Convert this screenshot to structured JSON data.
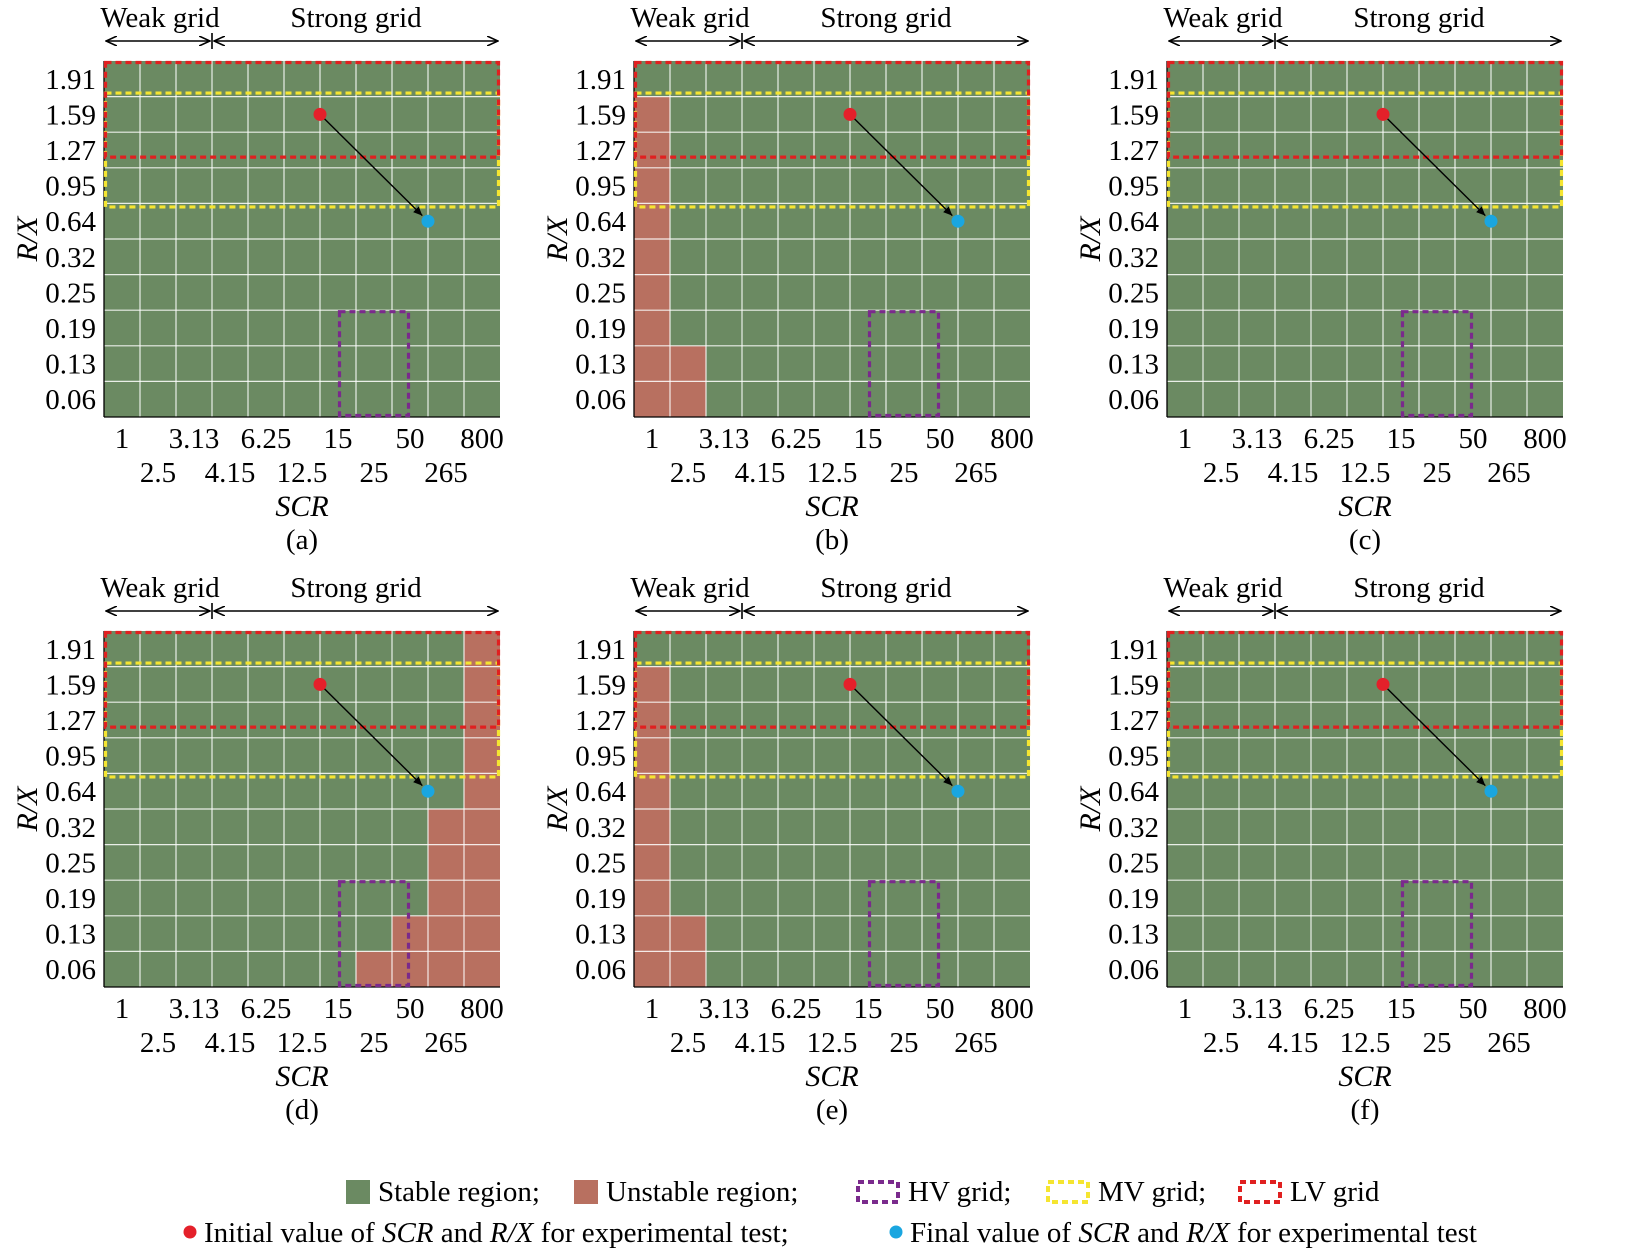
{
  "colors": {
    "stable": "#6b8a62",
    "unstable": "#b87060",
    "grid_line": "#ffffff",
    "hv": "#7a2a8c",
    "mv": "#f5e531",
    "lv": "#e02020",
    "initial_point": "#e4202a",
    "final_point": "#1aa6e0",
    "arrow": "#000000"
  },
  "chart_data": [
    {
      "type": "heatmap",
      "panel_label": "(a)",
      "region_labels": {
        "weak": "Weak grid",
        "strong": "Strong grid"
      },
      "x_ticks_top": [
        "1",
        "3.13",
        "6.25",
        "15",
        "50",
        "800"
      ],
      "x_ticks_bottom": [
        "2.5",
        "4.15",
        "12.5",
        "25",
        "265"
      ],
      "xlabel": "SCR",
      "ylabel": "R/X",
      "y_ticks": [
        "1.91",
        "1.59",
        "1.27",
        "0.95",
        "0.64",
        "0.32",
        "0.25",
        "0.19",
        "0.13",
        "0.06"
      ],
      "unstable_cells": [],
      "hv_grid": {
        "scr": [
          "15",
          "50"
        ],
        "rx": [
          "0.06",
          "0.19"
        ]
      },
      "mv_grid": {
        "scr": [
          "1",
          "800"
        ],
        "rx": [
          "0.95",
          "1.59"
        ]
      },
      "lv_grid": {
        "scr": [
          "1",
          "800"
        ],
        "rx": [
          "1.59",
          "1.91"
        ]
      },
      "initial_point": {
        "scr": 15,
        "rx": 1.59
      },
      "final_point": {
        "scr": 50,
        "rx": 0.64
      }
    },
    {
      "type": "heatmap",
      "panel_label": "(b)",
      "region_labels": {
        "weak": "Weak grid",
        "strong": "Strong grid"
      },
      "x_ticks_top": [
        "1",
        "3.13",
        "6.25",
        "15",
        "50",
        "800"
      ],
      "x_ticks_bottom": [
        "2.5",
        "4.15",
        "12.5",
        "25",
        "265"
      ],
      "xlabel": "SCR",
      "ylabel": "R/X",
      "y_ticks": [
        "1.91",
        "1.59",
        "1.27",
        "0.95",
        "0.64",
        "0.32",
        "0.25",
        "0.19",
        "0.13",
        "0.06"
      ],
      "unstable_cells": [
        {
          "scr": "1",
          "rx": "1.59"
        },
        {
          "scr": "1",
          "rx": "1.27"
        },
        {
          "scr": "1",
          "rx": "0.95"
        },
        {
          "scr": "1",
          "rx": "0.64"
        },
        {
          "scr": "1",
          "rx": "0.32"
        },
        {
          "scr": "1",
          "rx": "0.25"
        },
        {
          "scr": "1",
          "rx": "0.19"
        },
        {
          "scr": "1",
          "rx": "0.13"
        },
        {
          "scr": "1",
          "rx": "0.06"
        },
        {
          "scr": "2.5",
          "rx": "0.13"
        },
        {
          "scr": "2.5",
          "rx": "0.06"
        }
      ],
      "hv_grid": {
        "scr": [
          "15",
          "50"
        ],
        "rx": [
          "0.06",
          "0.19"
        ]
      },
      "mv_grid": {
        "scr": [
          "1",
          "800"
        ],
        "rx": [
          "0.95",
          "1.59"
        ]
      },
      "lv_grid": {
        "scr": [
          "1",
          "800"
        ],
        "rx": [
          "1.59",
          "1.91"
        ]
      },
      "initial_point": {
        "scr": 15,
        "rx": 1.59
      },
      "final_point": {
        "scr": 50,
        "rx": 0.64
      }
    },
    {
      "type": "heatmap",
      "panel_label": "(c)",
      "region_labels": {
        "weak": "Weak grid",
        "strong": "Strong grid"
      },
      "x_ticks_top": [
        "1",
        "3.13",
        "6.25",
        "15",
        "50",
        "800"
      ],
      "x_ticks_bottom": [
        "2.5",
        "4.15",
        "12.5",
        "25",
        "265"
      ],
      "xlabel": "SCR",
      "ylabel": "R/X",
      "y_ticks": [
        "1.91",
        "1.59",
        "1.27",
        "0.95",
        "0.64",
        "0.32",
        "0.25",
        "0.19",
        "0.13",
        "0.06"
      ],
      "unstable_cells": [],
      "hv_grid": {
        "scr": [
          "15",
          "50"
        ],
        "rx": [
          "0.06",
          "0.19"
        ]
      },
      "mv_grid": {
        "scr": [
          "1",
          "800"
        ],
        "rx": [
          "0.95",
          "1.59"
        ]
      },
      "lv_grid": {
        "scr": [
          "1",
          "800"
        ],
        "rx": [
          "1.59",
          "1.91"
        ]
      },
      "initial_point": {
        "scr": 15,
        "rx": 1.59
      },
      "final_point": {
        "scr": 50,
        "rx": 0.64
      }
    },
    {
      "type": "heatmap",
      "panel_label": "(d)",
      "region_labels": {
        "weak": "Weak grid",
        "strong": "Strong grid"
      },
      "x_ticks_top": [
        "1",
        "3.13",
        "6.25",
        "15",
        "50",
        "800"
      ],
      "x_ticks_bottom": [
        "2.5",
        "4.15",
        "12.5",
        "25",
        "265"
      ],
      "xlabel": "SCR",
      "ylabel": "R/X",
      "y_ticks": [
        "1.91",
        "1.59",
        "1.27",
        "0.95",
        "0.64",
        "0.32",
        "0.25",
        "0.19",
        "0.13",
        "0.06"
      ],
      "unstable_cells": [
        {
          "scr": "800",
          "rx": "1.91"
        },
        {
          "scr": "800",
          "rx": "1.59"
        },
        {
          "scr": "800",
          "rx": "1.27"
        },
        {
          "scr": "800",
          "rx": "0.95"
        },
        {
          "scr": "800",
          "rx": "0.64"
        },
        {
          "scr": "800",
          "rx": "0.32"
        },
        {
          "scr": "800",
          "rx": "0.25"
        },
        {
          "scr": "800",
          "rx": "0.19"
        },
        {
          "scr": "800",
          "rx": "0.13"
        },
        {
          "scr": "800",
          "rx": "0.06"
        },
        {
          "scr": "265",
          "rx": "0.32"
        },
        {
          "scr": "265",
          "rx": "0.25"
        },
        {
          "scr": "265",
          "rx": "0.19"
        },
        {
          "scr": "265",
          "rx": "0.13"
        },
        {
          "scr": "265",
          "rx": "0.06"
        },
        {
          "scr": "50",
          "rx": "0.13"
        },
        {
          "scr": "50",
          "rx": "0.06"
        },
        {
          "scr": "25",
          "rx": "0.06"
        }
      ],
      "hv_grid": {
        "scr": [
          "15",
          "50"
        ],
        "rx": [
          "0.06",
          "0.19"
        ]
      },
      "mv_grid": {
        "scr": [
          "1",
          "800"
        ],
        "rx": [
          "0.95",
          "1.59"
        ]
      },
      "lv_grid": {
        "scr": [
          "1",
          "800"
        ],
        "rx": [
          "1.59",
          "1.91"
        ]
      },
      "initial_point": {
        "scr": 15,
        "rx": 1.59
      },
      "final_point": {
        "scr": 50,
        "rx": 0.64
      }
    },
    {
      "type": "heatmap",
      "panel_label": "(e)",
      "region_labels": {
        "weak": "Weak grid",
        "strong": "Strong grid"
      },
      "x_ticks_top": [
        "1",
        "3.13",
        "6.25",
        "15",
        "50",
        "800"
      ],
      "x_ticks_bottom": [
        "2.5",
        "4.15",
        "12.5",
        "25",
        "265"
      ],
      "xlabel": "SCR",
      "ylabel": "R/X",
      "y_ticks": [
        "1.91",
        "1.59",
        "1.27",
        "0.95",
        "0.64",
        "0.32",
        "0.25",
        "0.19",
        "0.13",
        "0.06"
      ],
      "unstable_cells": [
        {
          "scr": "1",
          "rx": "1.59"
        },
        {
          "scr": "1",
          "rx": "1.27"
        },
        {
          "scr": "1",
          "rx": "0.95"
        },
        {
          "scr": "1",
          "rx": "0.64"
        },
        {
          "scr": "1",
          "rx": "0.32"
        },
        {
          "scr": "1",
          "rx": "0.25"
        },
        {
          "scr": "1",
          "rx": "0.19"
        },
        {
          "scr": "1",
          "rx": "0.13"
        },
        {
          "scr": "1",
          "rx": "0.06"
        },
        {
          "scr": "2.5",
          "rx": "0.13"
        },
        {
          "scr": "2.5",
          "rx": "0.06"
        }
      ],
      "hv_grid": {
        "scr": [
          "15",
          "50"
        ],
        "rx": [
          "0.06",
          "0.19"
        ]
      },
      "mv_grid": {
        "scr": [
          "1",
          "800"
        ],
        "rx": [
          "0.95",
          "1.59"
        ]
      },
      "lv_grid": {
        "scr": [
          "1",
          "800"
        ],
        "rx": [
          "1.59",
          "1.91"
        ]
      },
      "initial_point": {
        "scr": 15,
        "rx": 1.59
      },
      "final_point": {
        "scr": 50,
        "rx": 0.64
      }
    },
    {
      "type": "heatmap",
      "panel_label": "(f)",
      "region_labels": {
        "weak": "Weak grid",
        "strong": "Strong grid"
      },
      "x_ticks_top": [
        "1",
        "3.13",
        "6.25",
        "15",
        "50",
        "800"
      ],
      "x_ticks_bottom": [
        "2.5",
        "4.15",
        "12.5",
        "25",
        "265"
      ],
      "xlabel": "SCR",
      "ylabel": "R/X",
      "y_ticks": [
        "1.91",
        "1.59",
        "1.27",
        "0.95",
        "0.64",
        "0.32",
        "0.25",
        "0.19",
        "0.13",
        "0.06"
      ],
      "unstable_cells": [],
      "hv_grid": {
        "scr": [
          "15",
          "50"
        ],
        "rx": [
          "0.06",
          "0.19"
        ]
      },
      "mv_grid": {
        "scr": [
          "1",
          "800"
        ],
        "rx": [
          "0.95",
          "1.59"
        ]
      },
      "lv_grid": {
        "scr": [
          "1",
          "800"
        ],
        "rx": [
          "1.59",
          "1.91"
        ]
      },
      "initial_point": {
        "scr": 15,
        "rx": 1.59
      },
      "final_point": {
        "scr": 50,
        "rx": 0.64
      }
    }
  ],
  "legend": {
    "stable": "Stable region;",
    "unstable": "Unstable region;",
    "hv": "HV grid;",
    "mv": "MV grid;",
    "lv": "LV grid",
    "initial_pre": "Initial value of ",
    "initial_scr": "SCR",
    "initial_mid": " and ",
    "initial_rx": "R/X",
    "initial_post": " for experimental test;",
    "final_pre": "Final value of ",
    "final_scr": "SCR",
    "final_mid": " and ",
    "final_rx": "R/X",
    "final_post": " for experimental test"
  }
}
